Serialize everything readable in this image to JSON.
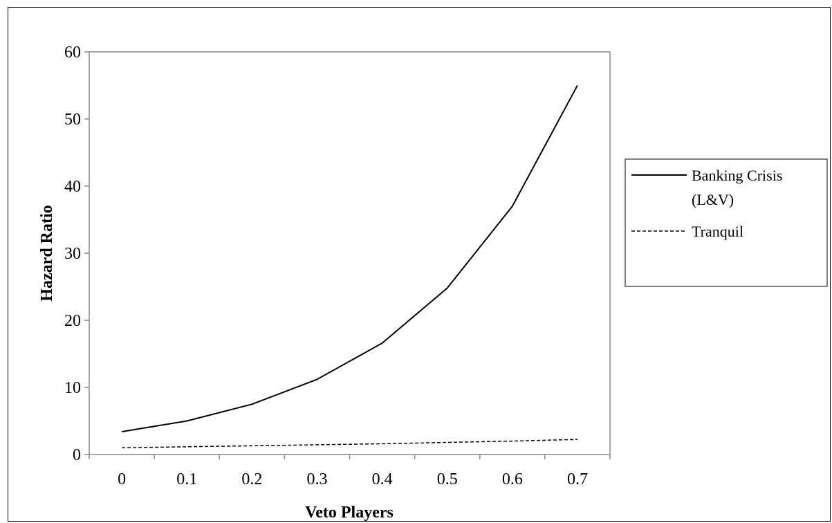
{
  "chart_data": {
    "type": "line",
    "title": "",
    "xlabel": "Veto Players",
    "ylabel": "Hazard Ratio",
    "categories": [
      "0",
      "0.1",
      "0.2",
      "0.3",
      "0.4",
      "0.5",
      "0.6",
      "0.7"
    ],
    "ylim": [
      0,
      60
    ],
    "yticks": [
      "0",
      "10",
      "20",
      "30",
      "40",
      "50",
      "60"
    ],
    "grid": false,
    "legend_position": "right",
    "series": [
      {
        "name_lines": [
          "Banking Crisis",
          "(L&V)"
        ],
        "style": "solid",
        "color": "#000000",
        "values": [
          3.4,
          5.0,
          7.5,
          11.2,
          16.6,
          24.8,
          37.0,
          55.0
        ]
      },
      {
        "name_lines": [
          "Tranquil"
        ],
        "style": "dashed",
        "color": "#000000",
        "values": [
          1.0,
          1.15,
          1.3,
          1.45,
          1.6,
          1.8,
          2.0,
          2.25
        ]
      }
    ]
  }
}
